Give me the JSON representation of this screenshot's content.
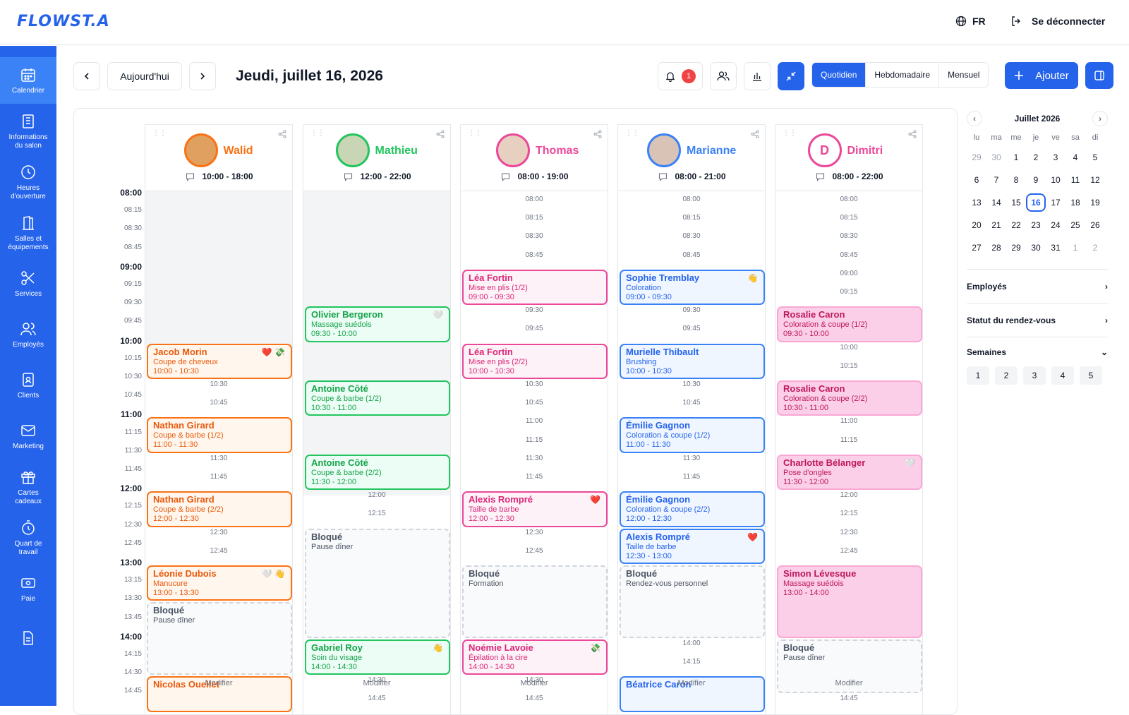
{
  "header": {
    "logo_text": "FLOWST.A",
    "lang": "FR",
    "logout": "Se déconnecter"
  },
  "sidebar": {
    "items": [
      {
        "label": "Calendrier",
        "icon": "calendar-icon",
        "active": true
      },
      {
        "label": "Informations\ndu salon",
        "icon": "building-icon"
      },
      {
        "label": "Heures\nd'ouverture",
        "icon": "clock-icon"
      },
      {
        "label": "Salles et\néquipements",
        "icon": "door-icon"
      },
      {
        "label": "Services",
        "icon": "scissors-icon"
      },
      {
        "label": "Employés",
        "icon": "users-icon"
      },
      {
        "label": "Clients",
        "icon": "client-card-icon"
      },
      {
        "label": "Marketing",
        "icon": "mail-icon"
      },
      {
        "label": "Cartes\ncadeaux",
        "icon": "gift-icon"
      },
      {
        "label": "Quart de\ntravail",
        "icon": "stopwatch-icon"
      },
      {
        "label": "Paie",
        "icon": "money-icon"
      },
      {
        "label": "",
        "icon": "document-icon"
      }
    ]
  },
  "toolbar": {
    "today": "Aujourd'hui",
    "date_title": "Jeudi, juillet 16, 2026",
    "notif_count": "1",
    "views": [
      "Quotidien",
      "Hebdomadaire",
      "Mensuel"
    ],
    "add": "Ajouter"
  },
  "times": [
    "08:00",
    "08:15",
    "08:30",
    "08:45",
    "09:00",
    "09:15",
    "09:30",
    "09:45",
    "10:00",
    "10:15",
    "10:30",
    "10:45",
    "11:00",
    "11:15",
    "11:30",
    "11:45",
    "12:00",
    "12:15",
    "12:30",
    "12:45",
    "13:00",
    "13:15",
    "13:30",
    "13:45",
    "14:00",
    "14:15",
    "14:30",
    "14:45"
  ],
  "employees": [
    {
      "name": "Walid",
      "hours": "10:00 - 18:00",
      "color": "#f97316",
      "initial": "",
      "gray_until": "10:00"
    },
    {
      "name": "Mathieu",
      "hours": "12:00 - 22:00",
      "color": "#22c55e",
      "initial": "",
      "gray_until": "12:00"
    },
    {
      "name": "Thomas",
      "hours": "08:00 - 19:00",
      "color": "#ec4899",
      "initial": "",
      "gray_until": ""
    },
    {
      "name": "Marianne",
      "hours": "08:00 - 21:00",
      "color": "#3b82f6",
      "initial": "",
      "gray_until": ""
    },
    {
      "name": "Dimitri",
      "hours": "08:00 - 22:00",
      "color": "#ec4899",
      "initial": "D",
      "gray_until": ""
    }
  ],
  "appointments": [
    {
      "col": 0,
      "start": "10:00",
      "dur": 2,
      "style": "o",
      "name": "Jacob Morin",
      "service": "Coupe de cheveux",
      "time": "10:00 - 10:30",
      "icons": "❤️ 💸"
    },
    {
      "col": 0,
      "start": "11:00",
      "dur": 2,
      "style": "o",
      "name": "Nathan Girard",
      "service": "Coupe & barbe (1/2)",
      "time": "11:00 - 11:30",
      "icons": ""
    },
    {
      "col": 0,
      "start": "12:00",
      "dur": 2,
      "style": "o",
      "name": "Nathan Girard",
      "service": "Coupe & barbe (2/2)",
      "time": "12:00 - 12:30",
      "icons": ""
    },
    {
      "col": 0,
      "start": "13:00",
      "dur": 2,
      "style": "o",
      "name": "Léonie Dubois",
      "service": "Manucure",
      "time": "13:00 - 13:30",
      "icons": "🤍 👋"
    },
    {
      "col": 0,
      "start": "13:30",
      "dur": 4,
      "style": "blk",
      "name": "Bloqué",
      "service": "Pause dîner",
      "time": "",
      "icons": ""
    },
    {
      "col": 0,
      "start": "14:30",
      "dur": 2,
      "style": "o",
      "name": "Nicolas Ouellet",
      "service": "",
      "time": "",
      "icons": ""
    },
    {
      "col": 1,
      "start": "09:30",
      "dur": 2,
      "style": "g",
      "name": "Olivier Bergeron",
      "service": "Massage suédois",
      "time": "09:30 - 10:00",
      "icons": "🤍"
    },
    {
      "col": 1,
      "start": "10:30",
      "dur": 2,
      "style": "g",
      "name": "Antoine Côté",
      "service": "Coupe & barbe (1/2)",
      "time": "10:30 - 11:00",
      "icons": ""
    },
    {
      "col": 1,
      "start": "11:30",
      "dur": 2,
      "style": "g",
      "name": "Antoine Côté",
      "service": "Coupe & barbe (2/2)",
      "time": "11:30 - 12:00",
      "icons": ""
    },
    {
      "col": 1,
      "start": "12:30",
      "dur": 6,
      "style": "blk",
      "name": "Bloqué",
      "service": "Pause dîner",
      "time": "",
      "icons": ""
    },
    {
      "col": 1,
      "start": "14:00",
      "dur": 2,
      "style": "g",
      "name": "Gabriel Roy",
      "service": "Soin du visage",
      "time": "14:00 - 14:30",
      "icons": "👋"
    },
    {
      "col": 2,
      "start": "09:00",
      "dur": 2,
      "style": "p",
      "name": "Léa Fortin",
      "service": "Mise en plis (1/2)",
      "time": "09:00 - 09:30",
      "icons": ""
    },
    {
      "col": 2,
      "start": "10:00",
      "dur": 2,
      "style": "p",
      "name": "Léa Fortin",
      "service": "Mise en plis (2/2)",
      "time": "10:00 - 10:30",
      "icons": ""
    },
    {
      "col": 2,
      "start": "12:00",
      "dur": 2,
      "style": "p",
      "name": "Alexis Rompré",
      "service": "Taille de barbe",
      "time": "12:00 - 12:30",
      "icons": "❤️"
    },
    {
      "col": 2,
      "start": "13:00",
      "dur": 4,
      "style": "blk",
      "name": "Bloqué",
      "service": "Formation",
      "time": "",
      "icons": ""
    },
    {
      "col": 2,
      "start": "14:00",
      "dur": 2,
      "style": "p",
      "name": "Noémie Lavoie",
      "service": "Épilation à la cire",
      "time": "14:00 - 14:30",
      "icons": "💸"
    },
    {
      "col": 3,
      "start": "09:00",
      "dur": 2,
      "style": "b",
      "name": "Sophie Tremblay",
      "service": "Coloration",
      "time": "09:00 - 09:30",
      "icons": "👋"
    },
    {
      "col": 3,
      "start": "10:00",
      "dur": 2,
      "style": "b",
      "name": "Murielle Thibault",
      "service": "Brushing",
      "time": "10:00 - 10:30",
      "icons": ""
    },
    {
      "col": 3,
      "start": "11:00",
      "dur": 2,
      "style": "b",
      "name": "Émilie Gagnon",
      "service": "Coloration & coupe (1/2)",
      "time": "11:00 - 11:30",
      "icons": ""
    },
    {
      "col": 3,
      "start": "12:00",
      "dur": 2,
      "style": "b",
      "name": "Émilie Gagnon",
      "service": "Coloration & coupe (2/2)",
      "time": "12:00 - 12:30",
      "icons": ""
    },
    {
      "col": 3,
      "start": "12:30",
      "dur": 2,
      "style": "b",
      "name": "Alexis Rompré",
      "service": "Taille de barbe",
      "time": "12:30 - 13:00",
      "icons": "❤️"
    },
    {
      "col": 3,
      "start": "13:00",
      "dur": 4,
      "style": "blk",
      "name": "Bloqué",
      "service": "Rendez-vous personnel",
      "time": "",
      "icons": ""
    },
    {
      "col": 3,
      "start": "14:30",
      "dur": 2,
      "style": "b",
      "name": "Béatrice Caron",
      "service": "",
      "time": "",
      "icons": ""
    },
    {
      "col": 4,
      "start": "09:30",
      "dur": 2,
      "style": "pk",
      "name": "Rosalie Caron",
      "service": "Coloration & coupe (1/2)",
      "time": "09:30 - 10:00",
      "icons": ""
    },
    {
      "col": 4,
      "start": "10:30",
      "dur": 2,
      "style": "pk",
      "name": "Rosalie Caron",
      "service": "Coloration & coupe (2/2)",
      "time": "10:30 - 11:00",
      "icons": ""
    },
    {
      "col": 4,
      "start": "11:30",
      "dur": 2,
      "style": "pk",
      "name": "Charlotte Bélanger",
      "service": "Pose d'ongles",
      "time": "11:30 - 12:00",
      "icons": "🤍"
    },
    {
      "col": 4,
      "start": "13:00",
      "dur": 4,
      "style": "pk",
      "name": "Simon Lévesque",
      "service": "Massage suédois",
      "time": "13:00 - 14:00",
      "icons": ""
    },
    {
      "col": 4,
      "start": "14:00",
      "dur": 3,
      "style": "blk",
      "name": "Bloqué",
      "service": "Pause dîner",
      "time": "",
      "icons": ""
    }
  ],
  "modify_label": "Modifier",
  "mini_calendar": {
    "month": "Juillet 2026",
    "dow": [
      "lu",
      "ma",
      "me",
      "je",
      "ve",
      "sa",
      "di"
    ],
    "days": [
      [
        "29",
        "30",
        "1",
        "2",
        "3",
        "4",
        "5"
      ],
      [
        "6",
        "7",
        "8",
        "9",
        "10",
        "11",
        "12"
      ],
      [
        "13",
        "14",
        "15",
        "16",
        "17",
        "18",
        "19"
      ],
      [
        "20",
        "21",
        "22",
        "23",
        "24",
        "25",
        "26"
      ],
      [
        "27",
        "28",
        "29",
        "30",
        "31",
        "1",
        "2"
      ]
    ],
    "today": "16"
  },
  "filters": {
    "employees": "Employés",
    "status": "Statut du rendez-vous",
    "weeks": "Semaines",
    "week_numbers": [
      "1",
      "2",
      "3",
      "4",
      "5"
    ]
  },
  "colors": {
    "primary": "#2563eb",
    "orange": "#f97316",
    "green": "#22c55e",
    "pink": "#ec4899",
    "blue": "#3b82f6"
  }
}
